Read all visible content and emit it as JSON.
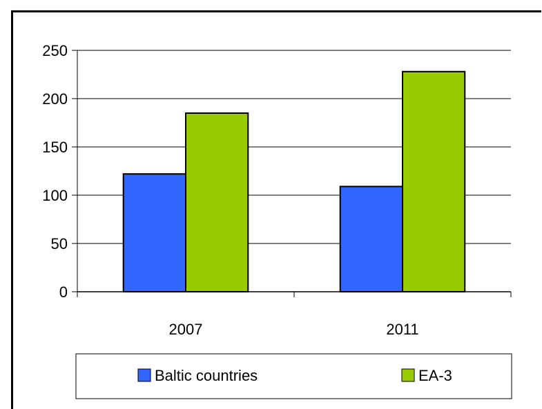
{
  "chart_data": {
    "type": "bar",
    "categories": [
      "2007",
      "2011"
    ],
    "series": [
      {
        "name": "Baltic countries",
        "values": [
          122,
          109
        ],
        "color": "#3366ff"
      },
      {
        "name": "EA-3",
        "values": [
          185,
          228
        ],
        "color": "#99cc00"
      }
    ],
    "yticks": [
      "0",
      "50",
      "100",
      "150",
      "200",
      "250"
    ],
    "ylim": [
      0,
      250
    ],
    "grid": true,
    "legend": "bottom"
  }
}
